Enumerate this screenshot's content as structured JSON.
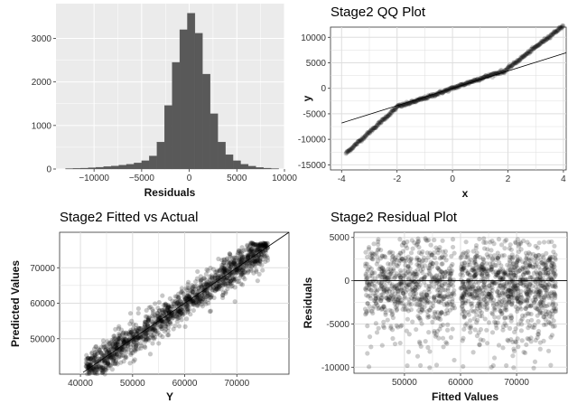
{
  "chart_data": [
    {
      "type": "bar",
      "title": "",
      "xlabel": "Residuals",
      "ylabel": "",
      "xlim": [
        -14000,
        10000
      ],
      "ylim": [
        0,
        3800
      ],
      "xticks": [
        -10000,
        -5000,
        0,
        5000,
        10000
      ],
      "xtick_labels": [
        "−10000",
        "−5000",
        "0",
        "5000",
        "10000"
      ],
      "yticks": [
        0,
        1000,
        2000,
        3000
      ],
      "ytick_labels": [
        "0",
        "1000",
        "2000",
        "3000"
      ],
      "grid": true,
      "bin_width": 800,
      "bins_start": [
        -13000,
        -12200,
        -11400,
        -10600,
        -9800,
        -9000,
        -8200,
        -7400,
        -6600,
        -5800,
        -5000,
        -4200,
        -3400,
        -2600,
        -1800,
        -1000,
        -200,
        600,
        1400,
        2200,
        3000,
        3800,
        4600,
        5400,
        6200,
        7000,
        7800,
        8600
      ],
      "values": [
        10,
        15,
        20,
        30,
        40,
        55,
        70,
        90,
        110,
        140,
        190,
        300,
        620,
        1460,
        2450,
        3200,
        3580,
        3120,
        2180,
        1270,
        620,
        330,
        190,
        110,
        65,
        35,
        20,
        10
      ]
    },
    {
      "type": "scatter",
      "title": "Stage2 QQ Plot",
      "xlabel": "x",
      "ylabel": "y",
      "xlim": [
        -4.4,
        4.1
      ],
      "ylim": [
        -16000,
        12000
      ],
      "xticks": [
        -4,
        -2,
        0,
        2,
        4
      ],
      "xtick_labels": [
        "-4",
        "-2",
        "0",
        "2",
        "4"
      ],
      "yticks": [
        -15000,
        -10000,
        -5000,
        0,
        5000,
        10000
      ],
      "ytick_labels": [
        "-15000",
        "-10000",
        "-5000",
        "0",
        "5000",
        "10000"
      ],
      "grid": true,
      "reference_line": {
        "intercept": 0,
        "slope": 1700
      }
    },
    {
      "type": "scatter",
      "title": "Stage2 Fitted vs Actual",
      "xlabel": "Y",
      "ylabel": "Predicted Values",
      "xlim": [
        36000,
        80000
      ],
      "ylim": [
        40000,
        80000
      ],
      "xticks": [
        40000,
        50000,
        60000,
        70000
      ],
      "xtick_labels": [
        "40000",
        "50000",
        "60000",
        "70000"
      ],
      "yticks": [
        50000,
        60000,
        70000
      ],
      "ytick_labels": [
        "50000",
        "60000",
        "70000"
      ],
      "grid": true,
      "reference_line": {
        "intercept": 0,
        "slope": 1
      }
    },
    {
      "type": "scatter",
      "title": "Stage2 Residual Plot",
      "xlabel": "Fitted Values",
      "ylabel": "Residuals",
      "xlim": [
        41000,
        79000
      ],
      "ylim": [
        -10700,
        5600
      ],
      "xticks": [
        50000,
        60000,
        70000
      ],
      "xtick_labels": [
        "50000",
        "60000",
        "70000"
      ],
      "yticks": [
        -10000,
        -5000,
        0,
        5000
      ],
      "ytick_labels": [
        "-10000",
        "-5000",
        "0",
        "5000"
      ],
      "grid": true,
      "reference_line": {
        "intercept": 0,
        "slope": 0
      }
    }
  ]
}
